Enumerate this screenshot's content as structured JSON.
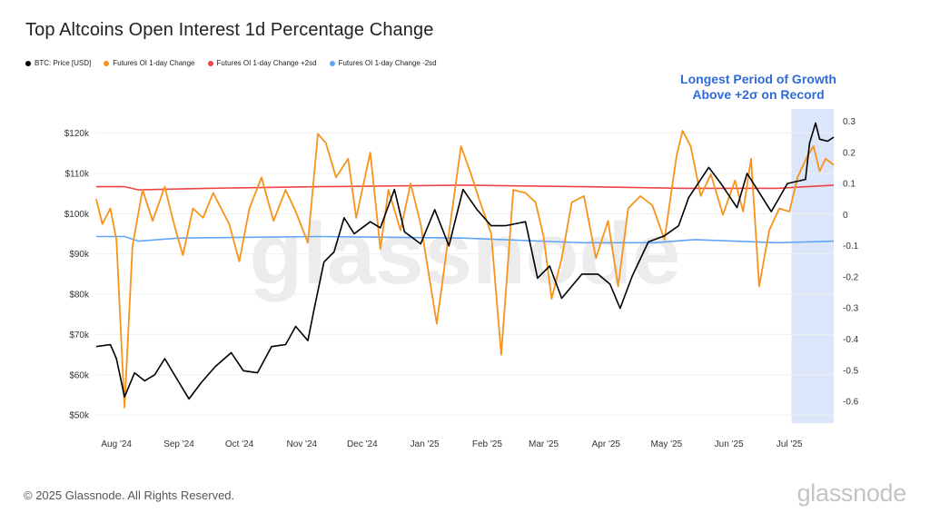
{
  "footer": {
    "copyright": "© 2025 Glassnode. All Rights Reserved.",
    "brand": "glassnode"
  },
  "watermark": "glassnode",
  "annotation": {
    "line1": "Longest Period of Growth",
    "line2": "Above +2σ on Record"
  },
  "colors": {
    "btc": "#000000",
    "oi": "#f7931a",
    "plus2sd": "#ef4444",
    "minus2sd": "#60a5fa",
    "highlight": "#dbe6fb",
    "annotation": "#2f6bd8"
  },
  "chart_data": {
    "type": "line",
    "title": "Top Altcoins Open Interest 1d Percentage Change",
    "legend": [
      {
        "label": "BTC: Price [USD]",
        "color": "#000000"
      },
      {
        "label": "Futures OI 1-day Change",
        "color": "#f7931a"
      },
      {
        "label": "Futures OI 1-day Change +2sd",
        "color": "#ef4444"
      },
      {
        "label": "Futures OI 1-day Change -2sd",
        "color": "#60a5fa"
      }
    ],
    "legend_position": "top-left",
    "x_labels": [
      "Aug '24",
      "Sep '24",
      "Oct '24",
      "Nov '24",
      "Dec '24",
      "Jan '25",
      "Feb '25",
      "Mar '25",
      "Apr '25",
      "May '25",
      "Jun '25",
      "Jul '25"
    ],
    "x_range": [
      "2024-07-22",
      "2025-07-23"
    ],
    "y_left": {
      "ticks": [
        50000,
        60000,
        70000,
        80000,
        90000,
        100000,
        110000,
        120000
      ],
      "labels": [
        "$50k",
        "$60k",
        "$70k",
        "$80k",
        "$90k",
        "$100k",
        "$110k",
        "$120k"
      ],
      "range": [
        48000,
        126000
      ]
    },
    "y_right": {
      "ticks": [
        -0.6,
        -0.5,
        -0.4,
        -0.3,
        -0.2,
        -0.1,
        0,
        0.1,
        0.2,
        0.3
      ],
      "labels": [
        "-0.6",
        "-0.5",
        "-0.4",
        "-0.3",
        "-0.2",
        "-0.1",
        "0",
        "0.1",
        "0.2",
        "0.3"
      ],
      "range": [
        -0.67,
        0.34
      ]
    },
    "grid": true,
    "highlight_range": [
      "2025-07-02",
      "2025-07-23"
    ],
    "series": [
      {
        "name": "BTC: Price [USD]",
        "axis": "left",
        "points": [
          [
            "2024-07-22",
            67000
          ],
          [
            "2024-07-29",
            67500
          ],
          [
            "2024-08-01",
            64000
          ],
          [
            "2024-08-05",
            54500
          ],
          [
            "2024-08-10",
            60500
          ],
          [
            "2024-08-15",
            58500
          ],
          [
            "2024-08-20",
            60000
          ],
          [
            "2024-08-25",
            64000
          ],
          [
            "2024-08-31",
            59000
          ],
          [
            "2024-09-06",
            54000
          ],
          [
            "2024-09-12",
            58000
          ],
          [
            "2024-09-19",
            62000
          ],
          [
            "2024-09-27",
            65500
          ],
          [
            "2024-10-03",
            61000
          ],
          [
            "2024-10-10",
            60500
          ],
          [
            "2024-10-17",
            67000
          ],
          [
            "2024-10-24",
            67500
          ],
          [
            "2024-10-29",
            72000
          ],
          [
            "2024-11-04",
            68500
          ],
          [
            "2024-11-07",
            76000
          ],
          [
            "2024-11-12",
            88000
          ],
          [
            "2024-11-17",
            90500
          ],
          [
            "2024-11-22",
            99000
          ],
          [
            "2024-11-27",
            95000
          ],
          [
            "2024-12-05",
            98000
          ],
          [
            "2024-12-10",
            96500
          ],
          [
            "2024-12-17",
            106000
          ],
          [
            "2024-12-22",
            95500
          ],
          [
            "2024-12-30",
            92500
          ],
          [
            "2025-01-06",
            101000
          ],
          [
            "2025-01-13",
            92000
          ],
          [
            "2025-01-20",
            106000
          ],
          [
            "2025-01-27",
            101000
          ],
          [
            "2025-02-03",
            97000
          ],
          [
            "2025-02-10",
            97000
          ],
          [
            "2025-02-20",
            98000
          ],
          [
            "2025-02-26",
            84000
          ],
          [
            "2025-03-04",
            87000
          ],
          [
            "2025-03-10",
            79000
          ],
          [
            "2025-03-20",
            85000
          ],
          [
            "2025-03-28",
            85000
          ],
          [
            "2025-04-03",
            82500
          ],
          [
            "2025-04-08",
            76500
          ],
          [
            "2025-04-14",
            84500
          ],
          [
            "2025-04-22",
            93000
          ],
          [
            "2025-04-30",
            94500
          ],
          [
            "2025-05-07",
            97000
          ],
          [
            "2025-05-12",
            104000
          ],
          [
            "2025-05-22",
            111500
          ],
          [
            "2025-05-28",
            107500
          ],
          [
            "2025-06-05",
            101500
          ],
          [
            "2025-06-10",
            110000
          ],
          [
            "2025-06-17",
            104500
          ],
          [
            "2025-06-22",
            100500
          ],
          [
            "2025-06-30",
            107500
          ],
          [
            "2025-07-09",
            108500
          ],
          [
            "2025-07-11",
            117500
          ],
          [
            "2025-07-14",
            122500
          ],
          [
            "2025-07-16",
            118500
          ],
          [
            "2025-07-20",
            118000
          ],
          [
            "2025-07-23",
            119000
          ]
        ]
      },
      {
        "name": "Futures OI 1-day Change",
        "axis": "right",
        "points": [
          [
            "2024-07-22",
            0.05
          ],
          [
            "2024-07-25",
            -0.03
          ],
          [
            "2024-07-29",
            0.02
          ],
          [
            "2024-08-01",
            -0.08
          ],
          [
            "2024-08-05",
            -0.62
          ],
          [
            "2024-08-09",
            -0.1
          ],
          [
            "2024-08-14",
            0.08
          ],
          [
            "2024-08-19",
            -0.02
          ],
          [
            "2024-08-25",
            0.09
          ],
          [
            "2024-08-30",
            -0.04
          ],
          [
            "2024-09-03",
            -0.13
          ],
          [
            "2024-09-08",
            0.02
          ],
          [
            "2024-09-13",
            -0.01
          ],
          [
            "2024-09-18",
            0.07
          ],
          [
            "2024-09-26",
            -0.03
          ],
          [
            "2024-10-01",
            -0.15
          ],
          [
            "2024-10-06",
            0.02
          ],
          [
            "2024-10-12",
            0.12
          ],
          [
            "2024-10-18",
            -0.02
          ],
          [
            "2024-10-24",
            0.08
          ],
          [
            "2024-10-29",
            0.01
          ],
          [
            "2024-11-04",
            -0.09
          ],
          [
            "2024-11-09",
            0.26
          ],
          [
            "2024-11-13",
            0.23
          ],
          [
            "2024-11-18",
            0.12
          ],
          [
            "2024-11-24",
            0.18
          ],
          [
            "2024-11-28",
            -0.01
          ],
          [
            "2024-12-05",
            0.2
          ],
          [
            "2024-12-10",
            -0.11
          ],
          [
            "2024-12-14",
            0.08
          ],
          [
            "2024-12-20",
            -0.05
          ],
          [
            "2024-12-25",
            0.1
          ],
          [
            "2024-12-30",
            -0.03
          ],
          [
            "2025-01-07",
            -0.35
          ],
          [
            "2025-01-13",
            -0.06
          ],
          [
            "2025-01-19",
            0.22
          ],
          [
            "2025-01-24",
            0.13
          ],
          [
            "2025-01-28",
            0.05
          ],
          [
            "2025-02-03",
            -0.06
          ],
          [
            "2025-02-08",
            -0.45
          ],
          [
            "2025-02-14",
            0.08
          ],
          [
            "2025-02-20",
            0.07
          ],
          [
            "2025-02-25",
            0.04
          ],
          [
            "2025-03-01",
            -0.07
          ],
          [
            "2025-03-05",
            -0.27
          ],
          [
            "2025-03-10",
            -0.14
          ],
          [
            "2025-03-15",
            0.04
          ],
          [
            "2025-03-21",
            0.06
          ],
          [
            "2025-03-27",
            -0.14
          ],
          [
            "2025-04-02",
            -0.02
          ],
          [
            "2025-04-07",
            -0.23
          ],
          [
            "2025-04-12",
            0.02
          ],
          [
            "2025-04-18",
            0.06
          ],
          [
            "2025-04-24",
            0.03
          ],
          [
            "2025-04-30",
            -0.08
          ],
          [
            "2025-05-06",
            0.19
          ],
          [
            "2025-05-09",
            0.27
          ],
          [
            "2025-05-13",
            0.22
          ],
          [
            "2025-05-18",
            0.06
          ],
          [
            "2025-05-23",
            0.13
          ],
          [
            "2025-05-29",
            0.0
          ],
          [
            "2025-06-04",
            0.11
          ],
          [
            "2025-06-08",
            0.01
          ],
          [
            "2025-06-12",
            0.18
          ],
          [
            "2025-06-16",
            -0.23
          ],
          [
            "2025-06-21",
            -0.05
          ],
          [
            "2025-06-26",
            0.02
          ],
          [
            "2025-07-01",
            0.01
          ],
          [
            "2025-07-05",
            0.12
          ],
          [
            "2025-07-10",
            0.19
          ],
          [
            "2025-07-13",
            0.22
          ],
          [
            "2025-07-16",
            0.14
          ],
          [
            "2025-07-19",
            0.18
          ],
          [
            "2025-07-23",
            0.16
          ]
        ]
      },
      {
        "name": "Futures OI 1-day Change +2sd",
        "axis": "right",
        "points": [
          [
            "2024-07-22",
            0.09
          ],
          [
            "2024-08-05",
            0.09
          ],
          [
            "2024-08-12",
            0.08
          ],
          [
            "2024-09-15",
            0.085
          ],
          [
            "2024-11-10",
            0.09
          ],
          [
            "2025-01-20",
            0.095
          ],
          [
            "2025-03-20",
            0.09
          ],
          [
            "2025-05-10",
            0.085
          ],
          [
            "2025-06-25",
            0.085
          ],
          [
            "2025-07-23",
            0.095
          ]
        ]
      },
      {
        "name": "Futures OI 1-day Change -2sd",
        "axis": "right",
        "points": [
          [
            "2024-07-22",
            -0.07
          ],
          [
            "2024-08-05",
            -0.07
          ],
          [
            "2024-08-12",
            -0.085
          ],
          [
            "2024-09-01",
            -0.075
          ],
          [
            "2024-11-10",
            -0.07
          ],
          [
            "2025-01-20",
            -0.075
          ],
          [
            "2025-03-20",
            -0.09
          ],
          [
            "2025-04-25",
            -0.09
          ],
          [
            "2025-05-15",
            -0.08
          ],
          [
            "2025-06-25",
            -0.09
          ],
          [
            "2025-07-23",
            -0.085
          ]
        ]
      }
    ]
  }
}
